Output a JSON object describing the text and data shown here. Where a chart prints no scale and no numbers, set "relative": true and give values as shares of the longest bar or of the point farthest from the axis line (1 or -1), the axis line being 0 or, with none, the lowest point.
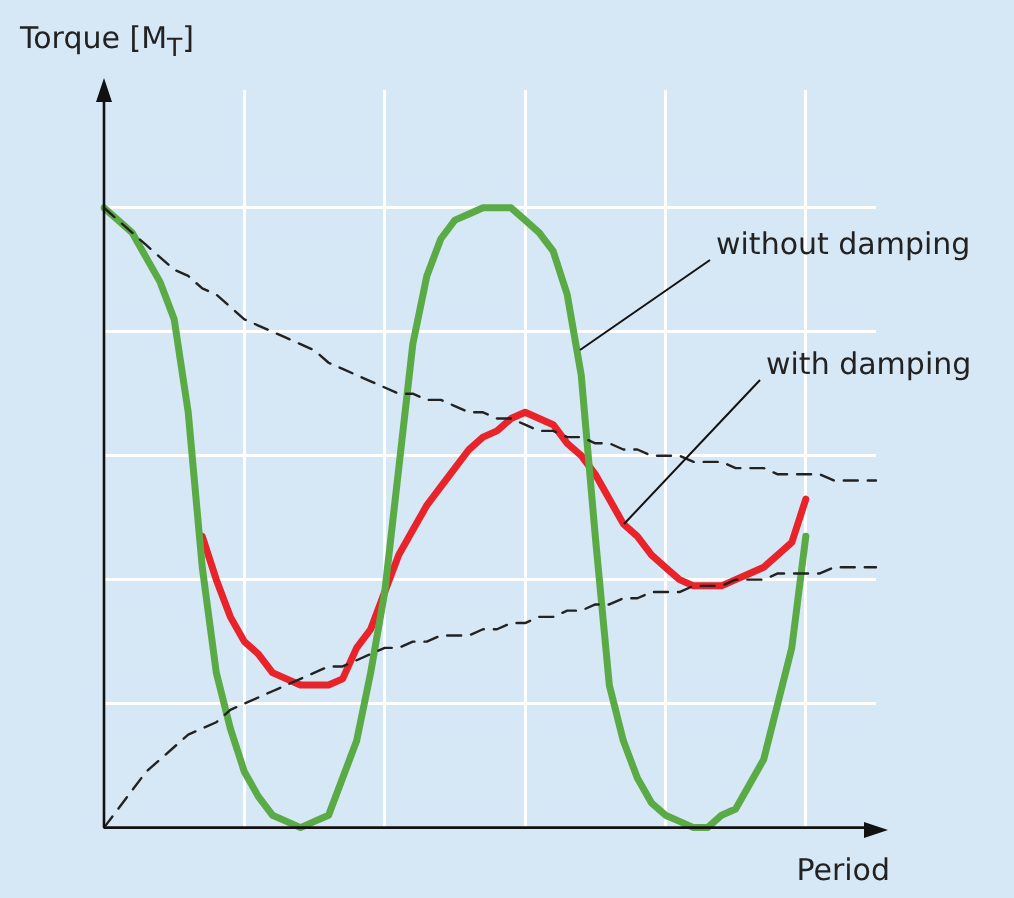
{
  "chart_data": {
    "type": "line",
    "relative": true,
    "xlabel": "Period",
    "ylabel": "Torque [M$_{T}$]",
    "grid": true,
    "legend": false,
    "marker": "none",
    "categories": [
      null,
      null,
      null,
      null,
      null,
      null,
      null,
      null,
      null,
      null,
      null,
      null,
      null,
      null,
      null,
      null,
      null,
      null,
      null,
      null,
      null,
      null,
      null,
      null,
      null,
      null,
      null,
      null,
      null,
      null,
      null,
      null,
      null,
      null,
      null,
      null,
      null,
      null,
      null,
      null,
      null,
      null,
      null,
      null,
      null,
      null,
      null,
      null,
      null,
      null,
      null,
      null,
      null,
      null,
      null,
      null
    ],
    "series": [
      {
        "color": "#222222",
        "line_style": "dashed",
        "values": [
          1.0,
          0.98,
          0.96,
          0.94,
          0.92,
          0.9,
          0.89,
          0.87,
          0.86,
          0.84,
          0.82,
          0.81,
          0.8,
          0.79,
          0.78,
          0.77,
          0.75,
          0.74,
          0.73,
          0.72,
          0.71,
          0.7,
          0.7,
          0.69,
          0.69,
          0.68,
          0.67,
          0.67,
          0.66,
          0.66,
          0.65,
          0.64,
          0.64,
          0.63,
          0.63,
          0.62,
          0.62,
          0.61,
          0.61,
          0.6,
          0.6,
          0.6,
          0.59,
          0.59,
          0.59,
          0.58,
          0.58,
          0.58,
          0.57,
          0.57,
          0.57,
          0.57,
          0.56,
          0.56,
          0.56,
          0.56
        ]
      },
      {
        "color": "#222222",
        "line_style": "dashed",
        "values": [
          0,
          0.03,
          0.06,
          0.09,
          0.11,
          0.13,
          0.15,
          0.16,
          0.17,
          0.19,
          0.2,
          0.21,
          0.22,
          0.23,
          0.24,
          0.25,
          0.26,
          0.26,
          0.27,
          0.28,
          0.29,
          0.29,
          0.3,
          0.3,
          0.31,
          0.31,
          0.31,
          0.32,
          0.32,
          0.33,
          0.33,
          0.34,
          0.34,
          0.35,
          0.35,
          0.36,
          0.36,
          0.37,
          0.37,
          0.38,
          0.38,
          0.38,
          0.39,
          0.39,
          0.39,
          0.4,
          0.4,
          0.4,
          0.41,
          0.41,
          0.41,
          0.41,
          0.42,
          0.42,
          0.42,
          0.42
        ]
      },
      {
        "color": "#5aaa46",
        "line_style": "solid",
        "values": [
          1.0,
          0.98,
          0.96,
          0.92,
          0.88,
          0.82,
          0.67,
          0.42,
          0.25,
          0.16,
          0.09,
          0.05,
          0.02,
          0.01,
          0,
          0.01,
          0.02,
          0.08,
          0.14,
          0.25,
          0.38,
          0.58,
          0.78,
          0.89,
          0.95,
          0.98,
          0.99,
          1.0,
          1.0,
          1.0,
          0.98,
          0.96,
          0.93,
          0.86,
          0.73,
          0.47,
          0.23,
          0.14,
          0.08,
          0.04,
          0.02,
          0.01,
          0,
          0,
          0.02,
          0.03,
          0.07,
          0.11,
          0.2,
          0.29,
          0.47,
          null,
          null,
          null,
          null,
          null
        ]
      },
      {
        "color": "#e8232a",
        "line_style": "solid",
        "values": [
          null,
          null,
          null,
          null,
          null,
          null,
          null,
          0.47,
          0.4,
          0.34,
          0.3,
          0.28,
          0.25,
          0.24,
          0.23,
          0.23,
          0.23,
          0.24,
          0.29,
          0.32,
          0.38,
          0.44,
          0.48,
          0.52,
          0.55,
          0.58,
          0.61,
          0.63,
          0.64,
          0.66,
          0.67,
          0.66,
          0.65,
          0.62,
          0.6,
          0.57,
          0.53,
          0.49,
          0.47,
          0.44,
          0.42,
          0.4,
          0.39,
          0.39,
          0.39,
          0.4,
          0.41,
          0.42,
          0.44,
          0.46,
          0.53,
          null,
          null,
          null,
          null,
          null
        ]
      }
    ],
    "annotations": [
      "without damping",
      "with damping"
    ]
  }
}
